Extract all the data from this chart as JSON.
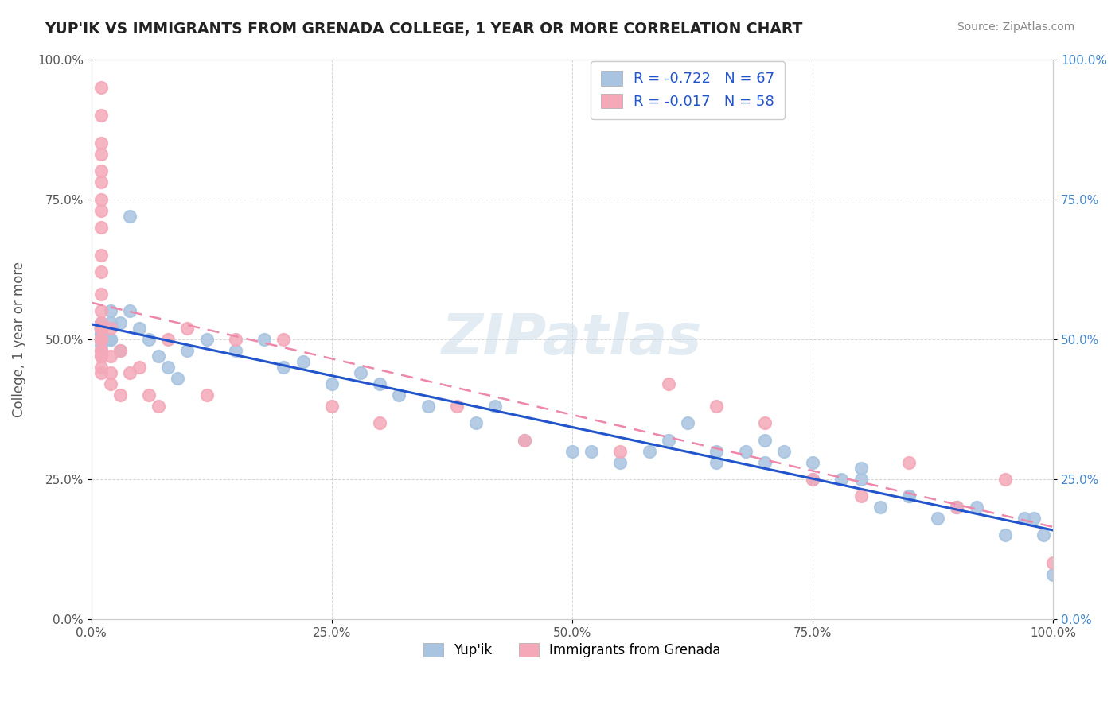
{
  "title": "YUP'IK VS IMMIGRANTS FROM GRENADA COLLEGE, 1 YEAR OR MORE CORRELATION CHART",
  "source_text": "Source: ZipAtlas.com",
  "ylabel": "College, 1 year or more",
  "legend_labels": [
    "Yup'ik",
    "Immigrants from Grenada"
  ],
  "r_yupik": -0.722,
  "n_yupik": 67,
  "r_grenada": -0.017,
  "n_grenada": 58,
  "scatter_color_yupik": "#a8c4e0",
  "scatter_color_grenada": "#f4a8b8",
  "line_color_yupik": "#2255cc",
  "line_color_grenada": "#ee88aa",
  "watermark_text": "ZIPatlas",
  "watermark_color": "#c8d8e8",
  "background_color": "#ffffff",
  "grid_color": "#cccccc",
  "xlim": [
    0.0,
    1.0
  ],
  "ylim": [
    0.0,
    1.0
  ],
  "yupik_x": [
    0.02,
    0.04,
    0.02,
    0.03,
    0.01,
    0.01,
    0.01,
    0.01,
    0.01,
    0.01,
    0.01,
    0.01,
    0.01,
    0.01,
    0.01,
    0.02,
    0.02,
    0.03,
    0.04,
    0.05,
    0.06,
    0.07,
    0.08,
    0.09,
    0.1,
    0.12,
    0.15,
    0.18,
    0.2,
    0.22,
    0.25,
    0.28,
    0.3,
    0.32,
    0.35,
    0.4,
    0.42,
    0.45,
    0.5,
    0.52,
    0.55,
    0.58,
    0.6,
    0.62,
    0.65,
    0.68,
    0.7,
    0.72,
    0.75,
    0.78,
    0.8,
    0.82,
    0.85,
    0.88,
    0.9,
    0.92,
    0.95,
    0.97,
    0.98,
    0.99,
    1.0,
    0.65,
    0.7,
    0.75,
    0.8,
    0.85,
    0.9
  ],
  "yupik_y": [
    0.55,
    0.72,
    0.5,
    0.53,
    0.52,
    0.52,
    0.53,
    0.52,
    0.51,
    0.5,
    0.49,
    0.52,
    0.51,
    0.5,
    0.52,
    0.5,
    0.53,
    0.48,
    0.55,
    0.52,
    0.5,
    0.47,
    0.45,
    0.43,
    0.48,
    0.5,
    0.48,
    0.5,
    0.45,
    0.46,
    0.42,
    0.44,
    0.42,
    0.4,
    0.38,
    0.35,
    0.38,
    0.32,
    0.3,
    0.3,
    0.28,
    0.3,
    0.32,
    0.35,
    0.3,
    0.3,
    0.28,
    0.3,
    0.25,
    0.25,
    0.27,
    0.2,
    0.22,
    0.18,
    0.2,
    0.2,
    0.15,
    0.18,
    0.18,
    0.15,
    0.08,
    0.28,
    0.32,
    0.28,
    0.25,
    0.22,
    0.2
  ],
  "grenada_x": [
    0.01,
    0.01,
    0.01,
    0.01,
    0.01,
    0.01,
    0.01,
    0.01,
    0.01,
    0.01,
    0.01,
    0.01,
    0.01,
    0.01,
    0.01,
    0.01,
    0.01,
    0.01,
    0.01,
    0.01,
    0.01,
    0.01,
    0.01,
    0.01,
    0.01,
    0.01,
    0.01,
    0.01,
    0.01,
    0.02,
    0.02,
    0.02,
    0.02,
    0.03,
    0.03,
    0.04,
    0.05,
    0.06,
    0.07,
    0.08,
    0.1,
    0.12,
    0.15,
    0.2,
    0.25,
    0.3,
    0.38,
    0.45,
    0.55,
    0.6,
    0.65,
    0.7,
    0.75,
    0.8,
    0.85,
    0.9,
    0.95,
    1.0
  ],
  "grenada_y": [
    0.95,
    0.9,
    0.85,
    0.83,
    0.8,
    0.78,
    0.75,
    0.73,
    0.7,
    0.65,
    0.62,
    0.58,
    0.55,
    0.52,
    0.5,
    0.52,
    0.5,
    0.52,
    0.53,
    0.5,
    0.48,
    0.52,
    0.5,
    0.47,
    0.45,
    0.52,
    0.48,
    0.47,
    0.44,
    0.44,
    0.52,
    0.47,
    0.42,
    0.48,
    0.4,
    0.44,
    0.45,
    0.4,
    0.38,
    0.5,
    0.52,
    0.4,
    0.5,
    0.5,
    0.38,
    0.35,
    0.38,
    0.32,
    0.3,
    0.42,
    0.38,
    0.35,
    0.25,
    0.22,
    0.28,
    0.2,
    0.25,
    0.1
  ]
}
